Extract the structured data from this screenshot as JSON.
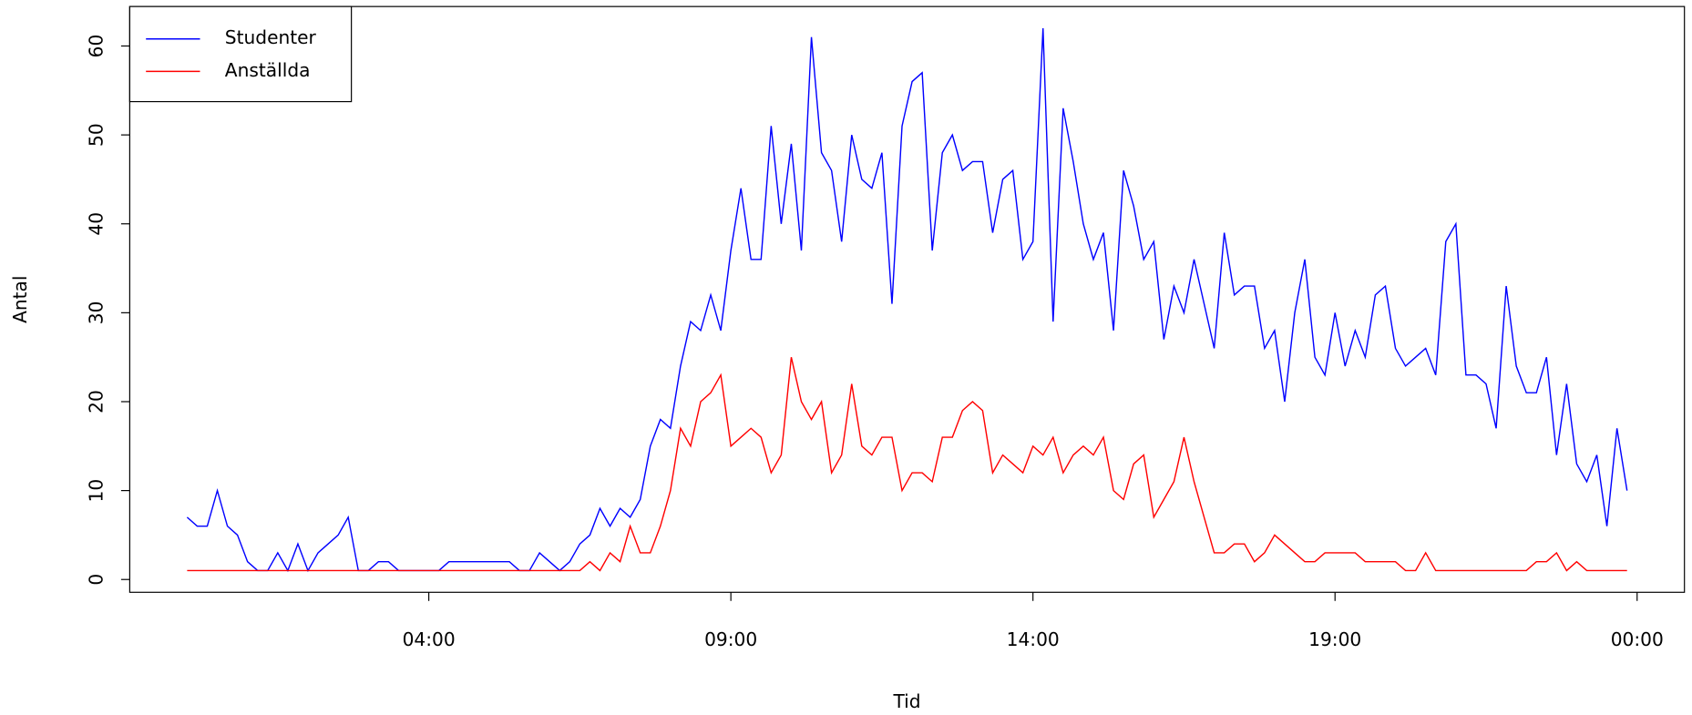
{
  "chart_data": {
    "type": "line",
    "x_label": "Tid",
    "y_label": "Antal",
    "x": [
      0,
      10,
      20,
      30,
      40,
      50,
      60,
      70,
      80,
      90,
      100,
      110,
      120,
      130,
      140,
      150,
      160,
      170,
      180,
      190,
      200,
      210,
      220,
      230,
      240,
      250,
      260,
      270,
      280,
      290,
      300,
      310,
      320,
      330,
      340,
      350,
      360,
      370,
      380,
      390,
      400,
      410,
      420,
      430,
      440,
      450,
      460,
      470,
      480,
      490,
      500,
      510,
      520,
      530,
      540,
      550,
      560,
      570,
      580,
      590,
      600,
      610,
      620,
      630,
      640,
      650,
      660,
      670,
      680,
      690,
      700,
      710,
      720,
      730,
      740,
      750,
      760,
      770,
      780,
      790,
      800,
      810,
      820,
      830,
      840,
      850,
      860,
      870,
      880,
      890,
      900,
      910,
      920,
      930,
      940,
      950,
      960,
      970,
      980,
      990,
      1000,
      1010,
      1020,
      1030,
      1040,
      1050,
      1060,
      1070,
      1080,
      1090,
      1100,
      1110,
      1120,
      1130,
      1140,
      1150,
      1160,
      1170,
      1180,
      1190,
      1200,
      1210,
      1220,
      1230,
      1240,
      1250,
      1260,
      1270,
      1280,
      1290,
      1300,
      1310,
      1320,
      1330,
      1340,
      1350,
      1360,
      1370,
      1380,
      1390,
      1400,
      1410,
      1420,
      1430
    ],
    "series": [
      {
        "name": "Studenter",
        "color": "#0000ff",
        "values": [
          7,
          6,
          6,
          10,
          6,
          5,
          2,
          1,
          1,
          3,
          1,
          4,
          1,
          3,
          4,
          5,
          7,
          1,
          1,
          2,
          2,
          1,
          1,
          1,
          1,
          1,
          2,
          2,
          2,
          2,
          2,
          2,
          2,
          1,
          1,
          3,
          2,
          1,
          2,
          4,
          5,
          8,
          6,
          8,
          7,
          9,
          15,
          18,
          17,
          24,
          29,
          28,
          32,
          28,
          37,
          44,
          36,
          36,
          51,
          40,
          49,
          37,
          61,
          48,
          46,
          38,
          50,
          45,
          44,
          48,
          31,
          51,
          56,
          57,
          37,
          48,
          50,
          46,
          47,
          47,
          39,
          45,
          46,
          36,
          38,
          62,
          29,
          53,
          47,
          40,
          36,
          39,
          28,
          46,
          42,
          36,
          38,
          27,
          33,
          30,
          36,
          31,
          26,
          39,
          32,
          33,
          33,
          26,
          28,
          20,
          30,
          36,
          25,
          23,
          30,
          24,
          28,
          25,
          32,
          33,
          26,
          24,
          25,
          26,
          23,
          38,
          40,
          23,
          23,
          22,
          17,
          33,
          24,
          21,
          21,
          25,
          14,
          22,
          13,
          11,
          14,
          6,
          17,
          10
        ]
      },
      {
        "name": "Anställda",
        "color": "#ff0000",
        "values": [
          1,
          1,
          1,
          1,
          1,
          1,
          1,
          1,
          1,
          1,
          1,
          1,
          1,
          1,
          1,
          1,
          1,
          1,
          1,
          1,
          1,
          1,
          1,
          1,
          1,
          1,
          1,
          1,
          1,
          1,
          1,
          1,
          1,
          1,
          1,
          1,
          1,
          1,
          1,
          1,
          2,
          1,
          3,
          2,
          6,
          3,
          3,
          6,
          10,
          17,
          15,
          20,
          21,
          23,
          15,
          16,
          17,
          16,
          12,
          14,
          25,
          20,
          18,
          20,
          12,
          14,
          22,
          15,
          14,
          16,
          16,
          10,
          12,
          12,
          11,
          16,
          16,
          19,
          20,
          19,
          12,
          14,
          13,
          12,
          15,
          14,
          16,
          12,
          14,
          15,
          14,
          16,
          10,
          9,
          13,
          14,
          7,
          9,
          11,
          16,
          11,
          7,
          3,
          3,
          4,
          4,
          2,
          3,
          5,
          4,
          3,
          2,
          2,
          3,
          3,
          3,
          3,
          2,
          2,
          2,
          2,
          1,
          1,
          3,
          1,
          1,
          1,
          1,
          1,
          1,
          1,
          1,
          1,
          1,
          2,
          2,
          3,
          1,
          2,
          1,
          1,
          1,
          1,
          1
        ]
      }
    ],
    "xlim": [
      -57,
      1487
    ],
    "ylim": [
      -1.44,
      64.44
    ],
    "xticks": [
      {
        "value": 240,
        "label": "04:00"
      },
      {
        "value": 540,
        "label": "09:00"
      },
      {
        "value": 840,
        "label": "14:00"
      },
      {
        "value": 1140,
        "label": "19:00"
      },
      {
        "value": 1440,
        "label": "00:00"
      }
    ],
    "yticks": [
      0,
      10,
      20,
      30,
      40,
      50,
      60
    ],
    "legend": "top-left"
  }
}
